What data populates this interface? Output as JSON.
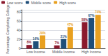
{
  "chart_data": {
    "type": "bar",
    "categories": [
      "Low Income",
      "Middle Income",
      "High Income"
    ],
    "series": [
      {
        "name": "Low score",
        "color": "#8B1A2D",
        "values": [
          8,
          7,
          58
        ],
        "value_labels": [
          "8%",
          "7%",
          "58%"
        ]
      },
      {
        "name": "Middle score",
        "color": "#1F4E79",
        "values": [
          16,
          21,
          67
        ],
        "value_labels": [
          "16%",
          "21%",
          "67%"
        ]
      },
      {
        "name": "High score",
        "color": "#E8A020",
        "values": [
          29,
          47,
          74
        ],
        "value_labels": [
          "29%",
          "47%",
          "74%"
        ]
      }
    ],
    "ylabel": "Percentage Completing College",
    "ylim": [
      0,
      85
    ],
    "yticks": [
      0,
      20,
      40,
      60,
      80
    ],
    "grid": true,
    "legend": "upper left",
    "data_labels": true
  }
}
